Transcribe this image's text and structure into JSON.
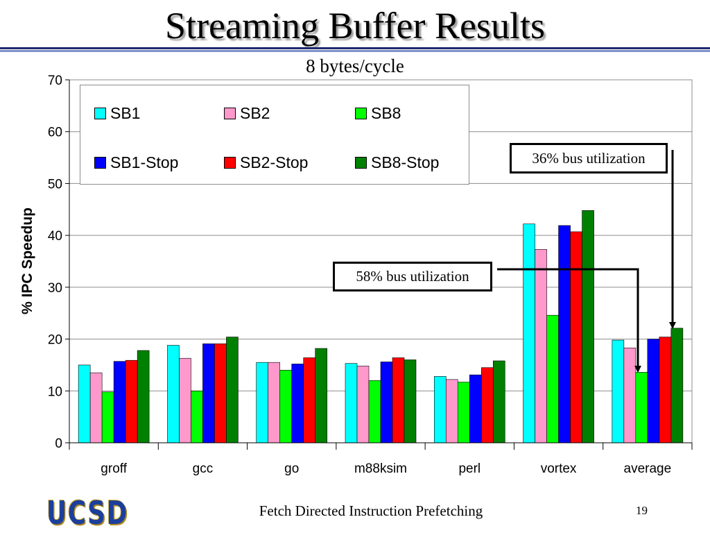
{
  "slide": {
    "title": "Streaming Buffer Results",
    "footer": "Fetch Directed Instruction Prefetching",
    "page_number": "19",
    "logo_text": "UCSD"
  },
  "annotations": {
    "callout_36": "36% bus utilization",
    "callout_58": "58% bus utilization"
  },
  "colors": {
    "SB1": "#00ffff",
    "SB2": "#ff99cc",
    "SB8": "#00ff00",
    "SB1-Stop": "#0000ff",
    "SB2-Stop": "#ff0000",
    "SB8-Stop": "#008000",
    "rule_dark": "#1d2b6e",
    "logo": "#1c3f9c"
  },
  "chart_data": {
    "type": "bar",
    "title": "8 bytes/cycle",
    "xlabel": "",
    "ylabel": "% IPC Speedup",
    "ylim": [
      0,
      70
    ],
    "yticks": [
      0,
      10,
      20,
      30,
      40,
      50,
      60,
      70
    ],
    "grid": true,
    "legend_position": "top-left",
    "categories": [
      "groff",
      "gcc",
      "go",
      "m88ksim",
      "perl",
      "vortex",
      "average"
    ],
    "series": [
      {
        "name": "SB1",
        "values": [
          15.0,
          18.8,
          15.5,
          15.3,
          12.8,
          42.2,
          19.8
        ]
      },
      {
        "name": "SB2",
        "values": [
          13.5,
          16.3,
          15.5,
          14.8,
          12.2,
          37.3,
          18.3
        ]
      },
      {
        "name": "SB8",
        "values": [
          9.8,
          10.0,
          14.0,
          12.0,
          11.7,
          24.6,
          13.6
        ]
      },
      {
        "name": "SB1-Stop",
        "values": [
          15.7,
          19.1,
          15.2,
          15.6,
          13.1,
          41.9,
          20.0
        ]
      },
      {
        "name": "SB2-Stop",
        "values": [
          15.9,
          19.1,
          16.4,
          16.4,
          14.5,
          40.7,
          20.4
        ]
      },
      {
        "name": "SB8-Stop",
        "values": [
          17.8,
          20.4,
          18.2,
          16.0,
          15.8,
          44.8,
          22.1
        ]
      }
    ]
  }
}
